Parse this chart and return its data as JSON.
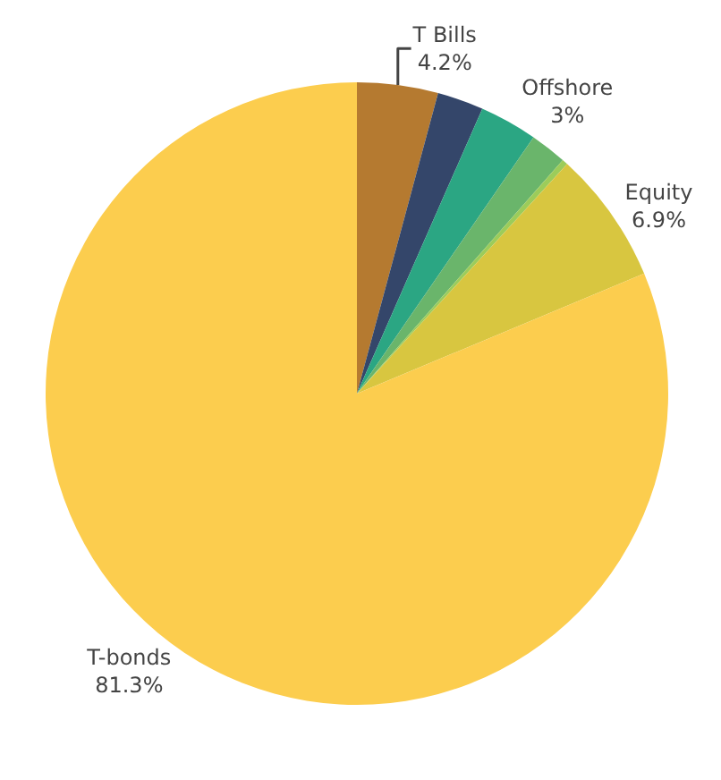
{
  "chart_data": {
    "type": "pie",
    "categories": [
      "T Bills",
      null,
      "Offshore",
      null,
      null,
      "Equity",
      "T-bonds"
    ],
    "values": [
      4.2,
      2.4,
      3,
      1.9,
      0.3,
      6.9,
      81.3
    ],
    "value_labels": [
      "4.2%",
      null,
      "3%",
      null,
      null,
      "6.9%",
      "81.3%"
    ],
    "colors": [
      "#b57a30",
      "#34466a",
      "#2ba683",
      "#6ab56b",
      "#9ccc5a",
      "#d8c640",
      "#fccd4e"
    ],
    "legend": false
  }
}
